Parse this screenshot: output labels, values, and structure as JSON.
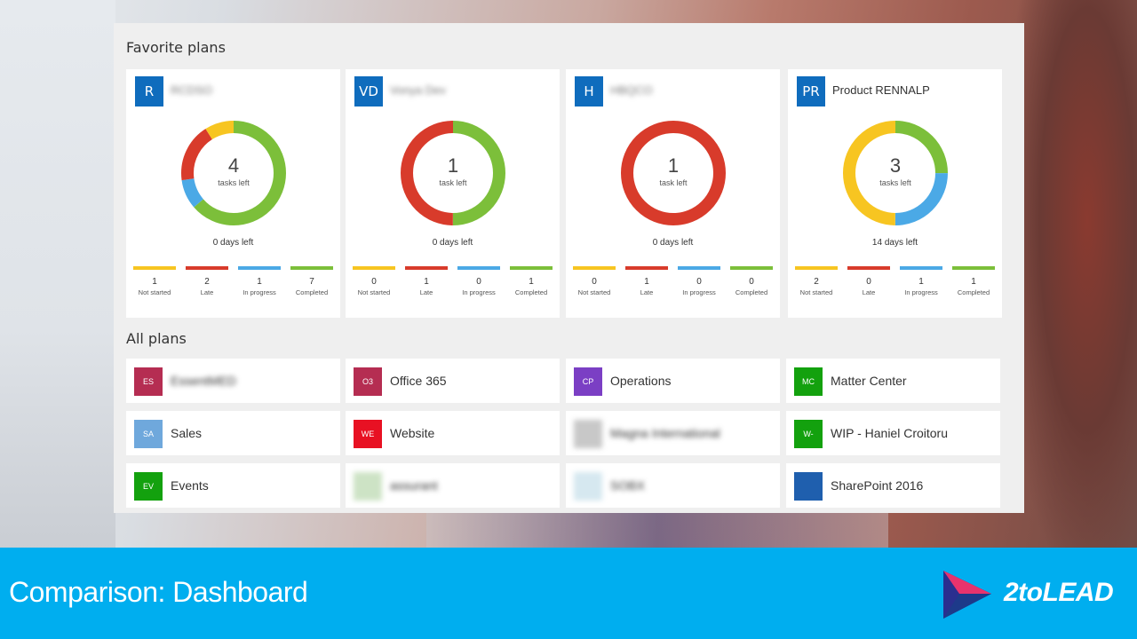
{
  "colors": {
    "not_started": "#f7c521",
    "late": "#d83b2b",
    "in_progress": "#4ba9e6",
    "completed": "#7cbf3a",
    "footer_bg": "#00aeef"
  },
  "favorite_section_title": "Favorite plans",
  "favorites": [
    {
      "initials": "R",
      "name": "RCDSO",
      "name_blurred": true,
      "avatar_color": "#0f6cbd",
      "tasks_left": "4",
      "tasks_label": "tasks left",
      "days_left": "0 days left",
      "counts": {
        "not_started": 1,
        "late": 2,
        "in_progress": 1,
        "completed": 7
      },
      "labels": {
        "not_started": "Not started",
        "late": "Late",
        "in_progress": "In progress",
        "completed": "Completed"
      }
    },
    {
      "initials": "VD",
      "name": "Vonya Dev",
      "name_blurred": true,
      "avatar_color": "#0f6cbd",
      "tasks_left": "1",
      "tasks_label": "task left",
      "days_left": "0 days left",
      "counts": {
        "not_started": 0,
        "late": 1,
        "in_progress": 0,
        "completed": 1
      },
      "labels": {
        "not_started": "Not started",
        "late": "Late",
        "in_progress": "In progress",
        "completed": "Completed"
      }
    },
    {
      "initials": "H",
      "name": "HBQCO",
      "name_blurred": true,
      "avatar_color": "#0f6cbd",
      "tasks_left": "1",
      "tasks_label": "task left",
      "days_left": "0 days left",
      "counts": {
        "not_started": 0,
        "late": 1,
        "in_progress": 0,
        "completed": 0
      },
      "labels": {
        "not_started": "Not started",
        "late": "Late",
        "in_progress": "In progress",
        "completed": "Completed"
      }
    },
    {
      "initials": "PR",
      "name": "Product RENNALP",
      "name_blurred": false,
      "avatar_color": "#0f6cbd",
      "tasks_left": "3",
      "tasks_label": "tasks left",
      "days_left": "14 days left",
      "counts": {
        "not_started": 2,
        "late": 0,
        "in_progress": 1,
        "completed": 1
      },
      "labels": {
        "not_started": "Not started",
        "late": "Late",
        "in_progress": "In progress",
        "completed": "Completed"
      }
    }
  ],
  "all_section_title": "All plans",
  "all_plans": [
    {
      "initials": "ES",
      "name": "EssentMED",
      "color": "#b52d52",
      "blurred": true
    },
    {
      "initials": "O3",
      "name": "Office 365",
      "color": "#b52d52",
      "blurred": false
    },
    {
      "initials": "CP",
      "name": "Operations",
      "color": "#7b3fc4",
      "blurred": false
    },
    {
      "initials": "MC",
      "name": "Matter Center",
      "color": "#13a10e",
      "blurred": false
    },
    {
      "initials": "SA",
      "name": "Sales",
      "color": "#6fa8dc",
      "blurred": false
    },
    {
      "initials": "WE",
      "name": "Website",
      "color": "#e81123",
      "blurred": false
    },
    {
      "initials": "",
      "name": "Magna International",
      "color": "#c8c8c8",
      "blurred": true
    },
    {
      "initials": "W-",
      "name": "WIP - Haniel Croitoru",
      "color": "#13a10e",
      "blurred": false
    },
    {
      "initials": "EV",
      "name": "Events",
      "color": "#13a10e",
      "blurred": false
    },
    {
      "initials": "",
      "name": "assurant",
      "color": "#cde3c5",
      "blurred": true
    },
    {
      "initials": "",
      "name": "SOBX",
      "color": "#d6e8f0",
      "blurred": true
    },
    {
      "initials": "",
      "name": "SharePoint 2016",
      "color": "#1f5fae",
      "blurred": false
    }
  ],
  "footer": {
    "title": "Comparison: Dashboard",
    "logo_text": "2toLEAD"
  }
}
